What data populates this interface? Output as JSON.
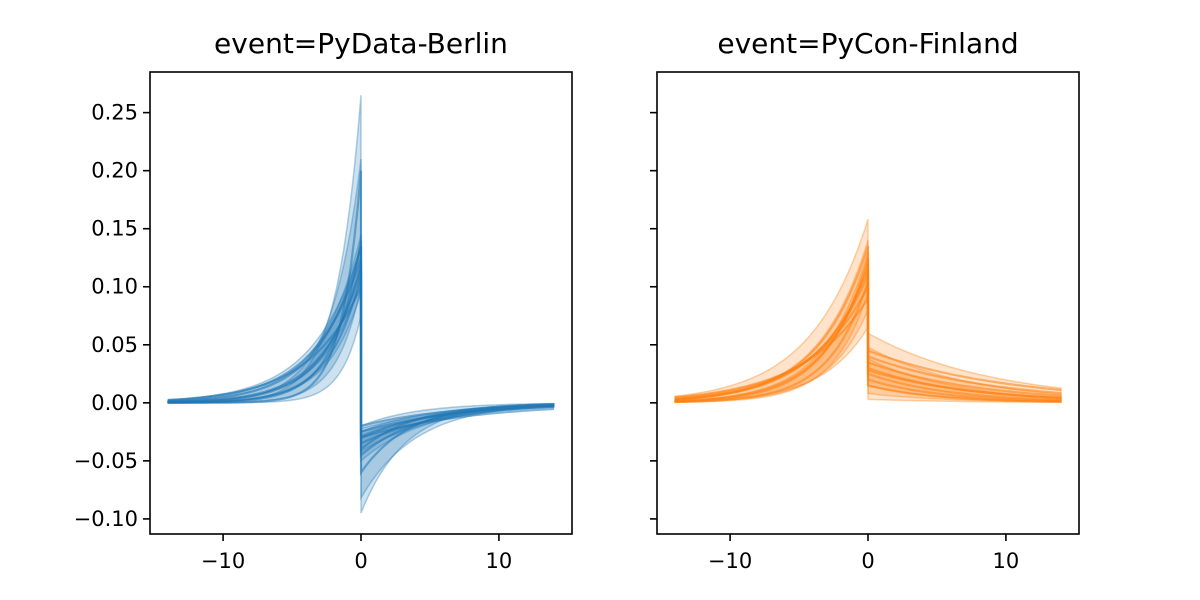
{
  "chart_data": [
    {
      "type": "line",
      "title": "event=PyData-Berlin",
      "color": "#1f77b4",
      "xlim": [
        -15.3,
        15.3
      ],
      "ylim": [
        -0.113,
        0.285
      ],
      "xticks": [
        -10,
        0,
        10
      ],
      "xtick_labels": [
        "−10",
        "0",
        "10"
      ],
      "yticks": [
        -0.1,
        -0.05,
        0.0,
        0.05,
        0.1,
        0.15,
        0.2,
        0.25
      ],
      "ytick_labels": [
        "−0.10",
        "−0.05",
        "0.00",
        "0.05",
        "0.10",
        "0.15",
        "0.20",
        "0.25"
      ],
      "x_range": [
        -14,
        14
      ],
      "series": [
        {
          "peak": 0.135,
          "after": -0.03,
          "width": 3.0,
          "tau": 5.5
        },
        {
          "peak": 0.12,
          "after": -0.035,
          "width": 2.6,
          "tau": 6.0
        },
        {
          "peak": 0.11,
          "after": -0.04,
          "width": 2.3,
          "tau": 4.0
        },
        {
          "peak": 0.125,
          "after": -0.025,
          "width": 3.4,
          "tau": 7.0
        },
        {
          "peak": 0.14,
          "after": -0.045,
          "width": 2.0,
          "tau": 4.5
        },
        {
          "peak": 0.2,
          "after": -0.06,
          "width": 1.4,
          "tau": 3.5
        },
        {
          "peak": 0.1,
          "after": -0.03,
          "width": 3.8,
          "tau": 8.0
        },
        {
          "peak": 0.115,
          "after": -0.02,
          "width": 2.8,
          "tau": 6.5
        }
      ],
      "bands": [
        {
          "peak_lo": 0.075,
          "peak_hi": 0.265,
          "after_lo": -0.095,
          "after_hi": -0.02,
          "width": 1.8,
          "tau": 4.0
        },
        {
          "peak_lo": 0.1,
          "peak_hi": 0.21,
          "after_lo": -0.082,
          "after_hi": -0.025,
          "width": 2.2,
          "tau": 5.0
        },
        {
          "peak_lo": 0.095,
          "peak_hi": 0.145,
          "after_lo": -0.05,
          "after_hi": -0.028,
          "width": 3.0,
          "tau": 6.0
        },
        {
          "peak_lo": 0.105,
          "peak_hi": 0.135,
          "after_lo": -0.042,
          "after_hi": -0.022,
          "width": 3.5,
          "tau": 7.0
        }
      ]
    },
    {
      "type": "line",
      "title": "event=PyCon-Finland",
      "color": "#ff7f0e",
      "xlim": [
        -15.3,
        15.3
      ],
      "ylim": [
        -0.113,
        0.285
      ],
      "xticks": [
        -10,
        0,
        10
      ],
      "xtick_labels": [
        "−10",
        "0",
        "10"
      ],
      "yticks": [
        -0.1,
        -0.05,
        0.0,
        0.05,
        0.1,
        0.15,
        0.2,
        0.25
      ],
      "ytick_labels": [],
      "x_range": [
        -14,
        14
      ],
      "series": [
        {
          "peak": 0.135,
          "after": 0.03,
          "width": 3.6,
          "tau": 7.0
        },
        {
          "peak": 0.12,
          "after": 0.025,
          "width": 3.2,
          "tau": 6.0
        },
        {
          "peak": 0.11,
          "after": 0.035,
          "width": 4.0,
          "tau": 8.0
        },
        {
          "peak": 0.1,
          "after": 0.04,
          "width": 4.4,
          "tau": 9.0
        },
        {
          "peak": 0.125,
          "after": 0.02,
          "width": 3.0,
          "tau": 5.5
        },
        {
          "peak": 0.09,
          "after": 0.045,
          "width": 4.8,
          "tau": 10.0
        },
        {
          "peak": 0.105,
          "after": 0.015,
          "width": 2.8,
          "tau": 5.0
        },
        {
          "peak": 0.115,
          "after": 0.028,
          "width": 3.8,
          "tau": 7.5
        }
      ],
      "bands": [
        {
          "peak_lo": 0.065,
          "peak_hi": 0.158,
          "after_lo": 0.003,
          "after_hi": 0.06,
          "width": 4.2,
          "tau": 9.0
        },
        {
          "peak_lo": 0.08,
          "peak_hi": 0.14,
          "after_lo": 0.008,
          "after_hi": 0.048,
          "width": 3.6,
          "tau": 7.5
        },
        {
          "peak_lo": 0.095,
          "peak_hi": 0.13,
          "after_lo": 0.015,
          "after_hi": 0.038,
          "width": 3.2,
          "tau": 6.5
        }
      ]
    }
  ]
}
